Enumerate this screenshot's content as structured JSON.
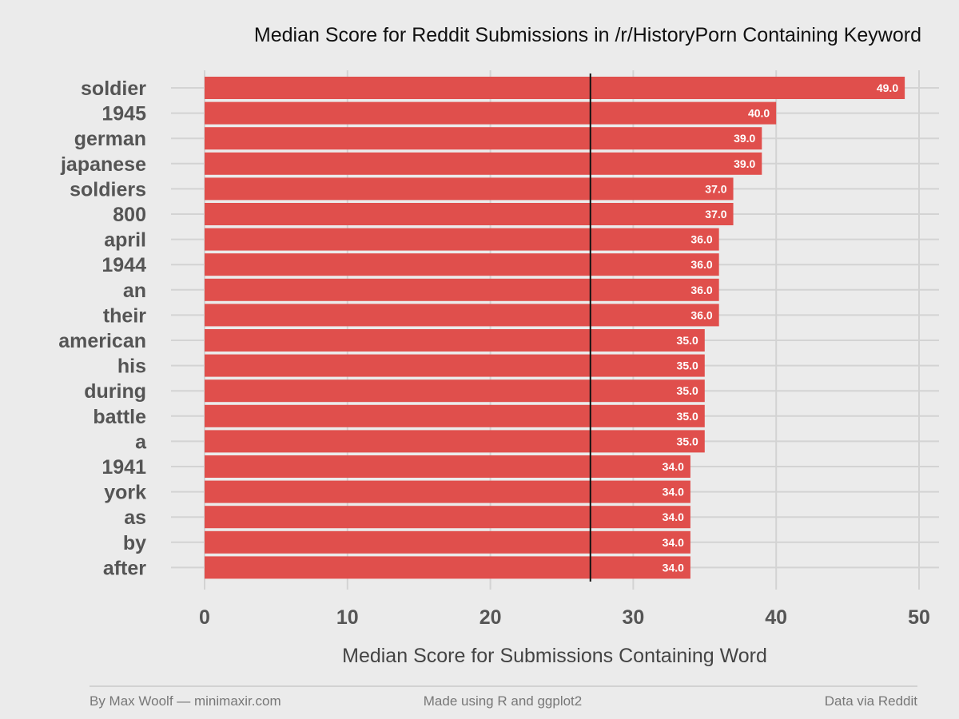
{
  "chart_data": {
    "type": "bar",
    "orientation": "horizontal",
    "title": "Median Score for Reddit Submissions in /r/HistoryPorn Containing Keyword",
    "xlabel": "Median Score for Submissions Containing Word",
    "ylabel": "",
    "categories": [
      "soldier",
      "1945",
      "german",
      "japanese",
      "soldiers",
      "800",
      "april",
      "1944",
      "an",
      "their",
      "american",
      "his",
      "during",
      "battle",
      "a",
      "1941",
      "york",
      "as",
      "by",
      "after"
    ],
    "values": [
      49,
      40,
      39,
      39,
      37,
      37,
      36,
      36,
      36,
      36,
      35,
      35,
      35,
      35,
      35,
      34,
      34,
      34,
      34,
      34
    ],
    "value_labels": [
      "49.0",
      "40.0",
      "39.0",
      "39.0",
      "37.0",
      "37.0",
      "36.0",
      "36.0",
      "36.0",
      "36.0",
      "35.0",
      "35.0",
      "35.0",
      "35.0",
      "35.0",
      "34.0",
      "34.0",
      "34.0",
      "34.0",
      "34.0"
    ],
    "xlim": [
      0,
      50
    ],
    "xticks": [
      0,
      10,
      20,
      30,
      40,
      50
    ],
    "reference_line": 27,
    "grid": true,
    "bar_color": "#e04f4c",
    "background_color": "#ebebeb",
    "gridline_color": "#d3d3d3"
  },
  "footer": {
    "left": "By Max Woolf — minimaxir.com",
    "center": "Made using R and ggplot2",
    "right": "Data via Reddit"
  }
}
